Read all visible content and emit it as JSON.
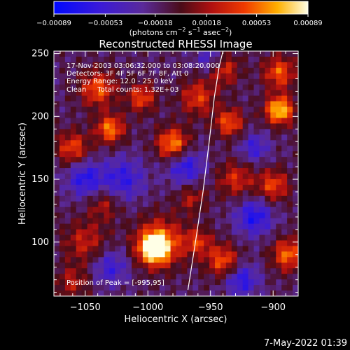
{
  "chart_data": {
    "type": "heatmap",
    "title": "Reconstructed RHESSI Image",
    "xlabel": "Heliocentric X (arcsec)",
    "ylabel": "Heliocentric Y (arcsec)",
    "xlim": [
      -1075,
      -880
    ],
    "ylim": [
      57,
      252
    ],
    "x_ticks": [
      -1050,
      -1000,
      -950,
      -900
    ],
    "x_tick_labels": [
      "−1050",
      "−1000",
      "−950",
      "−900"
    ],
    "y_ticks": [
      100,
      150,
      200,
      250
    ],
    "y_tick_labels": [
      "100",
      "150",
      "200",
      "250"
    ],
    "colorbar": {
      "range": [
        -0.00089,
        0.00089
      ],
      "ticks": [
        -0.00089,
        -0.00053,
        -0.00018,
        0.00018,
        0.00053,
        0.00089
      ],
      "tick_labels": [
        "−0.00089",
        "−0.00053",
        "−0.00018",
        "0.00018",
        "0.00053",
        "0.00089"
      ],
      "label_main": "(photons cm",
      "label_exp1": "−2",
      "label_mid": " s",
      "label_exp2": "−1",
      "label_tail": " asec",
      "label_exp3": "−2",
      "label_end": ")",
      "colormap": "blue-purple-red-yellow-white"
    },
    "annotations": [
      "17-Nov-2003 03:06:32.000 to 03:08:20.000",
      "Detectors: 3F 4F 5F 6F 7F 8F, Att 0",
      "Energy Range: 12.0 - 25.0 keV",
      "Clean     Total counts: 1.32E+03"
    ],
    "peak_label": "Position of Peak = [-995,95]",
    "peak": {
      "x": -995,
      "y": 95
    },
    "limb_curve": {
      "x": [
        -968,
        -962,
        -956,
        -951,
        -947,
        -943,
        -940
      ],
      "y": [
        62,
        100,
        140,
        180,
        215,
        240,
        252
      ]
    },
    "sources": [
      {
        "x": -995,
        "y": 95,
        "amp": 1.0,
        "sigma": 8
      },
      {
        "x": -990,
        "y": 100,
        "amp": 0.6,
        "sigma": 14
      },
      {
        "x": -980,
        "y": 178,
        "amp": 0.75,
        "sigma": 9
      },
      {
        "x": -1030,
        "y": 190,
        "amp": 0.7,
        "sigma": 8
      },
      {
        "x": -1040,
        "y": 222,
        "amp": 0.6,
        "sigma": 10
      },
      {
        "x": -1060,
        "y": 175,
        "amp": 0.55,
        "sigma": 9
      },
      {
        "x": -1005,
        "y": 215,
        "amp": 0.55,
        "sigma": 8
      },
      {
        "x": -960,
        "y": 215,
        "amp": 0.5,
        "sigma": 10
      },
      {
        "x": -940,
        "y": 238,
        "amp": 0.5,
        "sigma": 9
      },
      {
        "x": -935,
        "y": 195,
        "amp": 0.6,
        "sigma": 8
      },
      {
        "x": -895,
        "y": 205,
        "amp": 0.9,
        "sigma": 8
      },
      {
        "x": -895,
        "y": 235,
        "amp": 0.6,
        "sigma": 9
      },
      {
        "x": -900,
        "y": 145,
        "amp": 0.55,
        "sigma": 9
      },
      {
        "x": -888,
        "y": 90,
        "amp": 0.65,
        "sigma": 9
      },
      {
        "x": -940,
        "y": 85,
        "amp": 0.6,
        "sigma": 9
      },
      {
        "x": -960,
        "y": 100,
        "amp": 0.45,
        "sigma": 8
      },
      {
        "x": -1050,
        "y": 100,
        "amp": 0.4,
        "sigma": 12
      },
      {
        "x": -1035,
        "y": 130,
        "amp": 0.35,
        "sigma": 9
      },
      {
        "x": -930,
        "y": 150,
        "amp": 0.45,
        "sigma": 10
      },
      {
        "x": -965,
        "y": 135,
        "amp": 0.35,
        "sigma": 8
      },
      {
        "x": -1060,
        "y": 68,
        "amp": 0.35,
        "sigma": 9
      },
      {
        "x": -1020,
        "y": 150,
        "amp": -0.45,
        "sigma": 12
      },
      {
        "x": -1050,
        "y": 150,
        "amp": -0.5,
        "sigma": 10
      },
      {
        "x": -970,
        "y": 160,
        "amp": -0.5,
        "sigma": 10
      },
      {
        "x": -915,
        "y": 120,
        "amp": -0.55,
        "sigma": 10
      },
      {
        "x": -925,
        "y": 70,
        "amp": -0.5,
        "sigma": 9
      },
      {
        "x": -1030,
        "y": 80,
        "amp": -0.4,
        "sigma": 10
      },
      {
        "x": -950,
        "y": 245,
        "amp": -0.4,
        "sigma": 8
      },
      {
        "x": -915,
        "y": 175,
        "amp": -0.4,
        "sigma": 8
      }
    ]
  },
  "timestamp": "7-May-2022 01:39"
}
